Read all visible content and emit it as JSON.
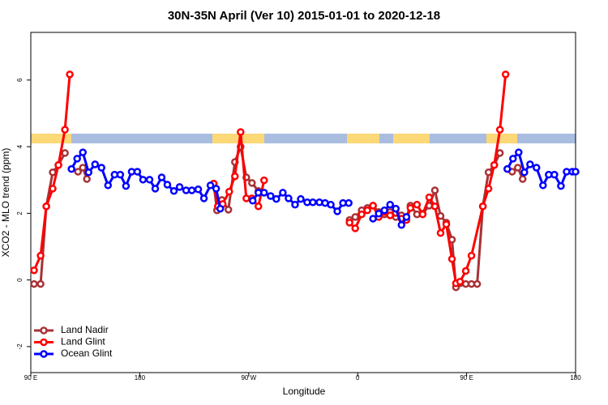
{
  "chart_data": {
    "type": "line",
    "title": "30N-35N April (Ver 10)   2015-01-01 to 2020-12-18",
    "x_label": "Longitude",
    "y_label": "XCO2 - MLO trend (ppm)",
    "xlim": [
      90,
      540
    ],
    "ylim": [
      -2.78,
      7.43
    ],
    "xticks": [
      {
        "value": 90,
        "label": "90 E"
      },
      180,
      {
        "value": 270,
        "label": "90 W"
      },
      {
        "value": 360,
        "label": "0"
      },
      {
        "value": 450,
        "label": "90 E"
      },
      {
        "value": 540,
        "label": "180"
      }
    ],
    "yticks": [
      -2,
      0,
      2,
      4,
      6
    ],
    "legend": "bottom-left",
    "series": [
      {
        "name": "Land Nadir",
        "color": "#a83236",
        "x": [
          92.7,
          98.1,
          102.8,
          108.1,
          112.8,
          118.2,
          null,
          129,
          133,
          136.3,
          null,
          241.1,
          243.8,
          247.8,
          253.2,
          258.6,
          263.3,
          268,
          272.7,
          278,
          null,
          353.3,
          358,
          363.3,
          368,
          372.7,
          377.4,
          382.1,
          386.8,
          391.5,
          396.2,
          400.3,
          403.6,
          409,
          413.7,
          419.1,
          423.8,
          428.5,
          433.2,
          437.9,
          441.2,
          444.6,
          449.3,
          454,
          458.7,
          463.4,
          468.1,
          472.8,
          477.5,
          null,
          487.6,
          492.3,
          496.3
        ],
        "values": [
          -0.12,
          -0.12,
          2.21,
          3.23,
          3.45,
          3.81,
          null,
          3.25,
          3.37,
          3.03,
          null,
          2.89,
          2.09,
          2.4,
          2.11,
          3.54,
          4.0,
          3.08,
          2.91,
          2.67,
          null,
          1.8,
          1.89,
          2.09,
          2.16,
          2.23,
          2.04,
          1.97,
          2.04,
          1.89,
          1.94,
          1.89,
          2.23,
          1.97,
          1.99,
          2.23,
          2.69,
          1.92,
          1.72,
          1.21,
          -0.22,
          -0.1,
          -0.12,
          -0.12,
          -0.12,
          2.21,
          3.23,
          3.45,
          3.81,
          null,
          3.25,
          3.37,
          3.03
        ]
      },
      {
        "name": "Land Glint",
        "color": "#ff0000",
        "x": [
          92.7,
          98.1,
          102.8,
          108.1,
          112.8,
          118.2,
          122.2,
          null,
          241.1,
          244.5,
          248.5,
          253.9,
          258.6,
          263.3,
          268,
          272.7,
          278,
          282.7,
          null,
          353.3,
          358,
          363.3,
          368,
          372.7,
          377.4,
          382.1,
          386.8,
          391.5,
          396.2,
          400.3,
          403.6,
          409,
          413.7,
          419.1,
          423.8,
          428.5,
          433.2,
          437.9,
          441.2,
          444.6,
          449.3,
          454,
          463.4,
          468.1,
          472.8,
          477.5,
          482.2
        ],
        "values": [
          0.29,
          0.73,
          2.21,
          2.74,
          3.45,
          4.51,
          6.17,
          null,
          2.89,
          2.21,
          2.28,
          2.65,
          3.11,
          4.44,
          2.45,
          2.45,
          2.21,
          2.99,
          null,
          1.72,
          1.55,
          1.97,
          2.09,
          2.23,
          1.89,
          2.04,
          1.94,
          2.01,
          1.84,
          1.8,
          2.16,
          2.26,
          1.97,
          2.48,
          2.21,
          1.41,
          1.67,
          0.63,
          -0.1,
          -0.05,
          0.27,
          0.73,
          2.21,
          2.74,
          3.45,
          4.51,
          6.17
        ]
      },
      {
        "name": "Ocean Glint",
        "color": "#0000ff",
        "x": [
          123.6,
          128.3,
          133,
          137.7,
          143.1,
          148.4,
          153.8,
          159.2,
          163.9,
          168.6,
          173.3,
          178,
          182.7,
          188.1,
          192.8,
          198.1,
          202.8,
          208.2,
          212.9,
          218.3,
          223,
          228.3,
          233,
          238.4,
          243.1,
          246.5,
          null,
          273.3,
          278,
          282.7,
          288.1,
          292.8,
          298.2,
          302.9,
          308.3,
          313,
          318.3,
          323,
          328.4,
          333.1,
          337.8,
          343.2,
          347.9,
          352.6,
          null,
          372.7,
          377.4,
          382.1,
          386.8,
          391.5,
          396.2,
          400.3,
          null,
          483.6,
          488.3,
          493,
          497.7,
          502.4,
          507.7,
          513.1,
          517.8,
          522.5,
          527.9,
          532.6,
          537.3,
          540
        ],
        "values": [
          3.33,
          3.64,
          3.83,
          3.23,
          3.47,
          3.37,
          2.84,
          3.16,
          3.16,
          2.82,
          3.25,
          3.25,
          3.01,
          3.01,
          2.74,
          3.08,
          2.86,
          2.67,
          2.79,
          2.69,
          2.69,
          2.72,
          2.45,
          2.84,
          2.74,
          2.14,
          null,
          2.38,
          2.62,
          2.62,
          2.52,
          2.43,
          2.62,
          2.45,
          2.26,
          2.43,
          2.33,
          2.33,
          2.33,
          2.31,
          2.26,
          2.06,
          2.31,
          2.31,
          null,
          1.84,
          1.99,
          2.09,
          2.26,
          2.14,
          1.65,
          1.89,
          null,
          3.33,
          3.64,
          3.83,
          3.23,
          3.47,
          3.37,
          2.84,
          3.16,
          3.16,
          2.82,
          3.25,
          3.25,
          3.25
        ]
      }
    ]
  }
}
